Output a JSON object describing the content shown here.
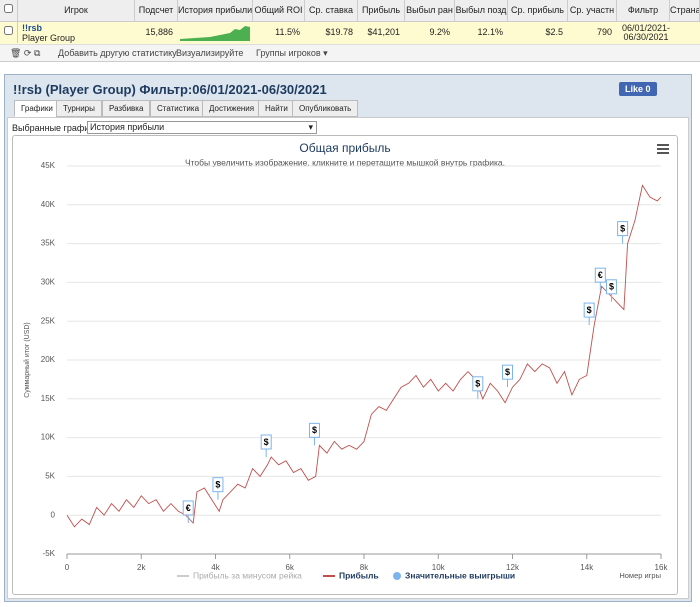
{
  "table": {
    "headers": [
      "Игрок",
      "Подсчет",
      "История прибыли",
      "Общий ROI",
      "Ср. ставка",
      "Прибыль",
      "Выбыл ран",
      "Выбыл позд",
      "Ср. прибыль",
      "Ср. участн",
      "Фильтр",
      "Страна"
    ],
    "row": {
      "player": "!!rsb",
      "group": "Player Group",
      "cells": [
        "15,886",
        "11.5%",
        "$19.78",
        "$41,201",
        "9.2%",
        "12.1%",
        "$2.5",
        "790"
      ],
      "filter": [
        "06/01/2021-",
        "06/30/2021"
      ]
    }
  },
  "toolbar": {
    "add": "Добавить другую статистику",
    "visualize": "Визуализируйте",
    "groups": "Группы игроков ▾"
  },
  "panel": {
    "title": "!!rsb (Player Group) Фильтр:06/01/2021-06/30/2021",
    "like": "Like 0",
    "tabs": [
      "Графики",
      "Турниры",
      "Разбивка",
      "Статистика",
      "Достижения",
      "Найти",
      "Опубликовать"
    ],
    "select_label": "Выбранные графики:",
    "select_value": "История прибыли"
  },
  "chart_data": {
    "type": "line",
    "title": "Общая прибыль",
    "subtitle": "Чтобы увеличить изображение, кликните и перетащите мышкой внутрь графика.",
    "y_label": "Суммарный итог (USD)",
    "x_label": "Номер игры",
    "x": [
      0,
      200,
      400,
      600,
      800,
      1000,
      1200,
      1400,
      1600,
      1800,
      2000,
      2200,
      2400,
      2600,
      2800,
      3000,
      3200,
      3400,
      3500,
      3700,
      3900,
      4100,
      4200,
      4400,
      4600,
      4800,
      5000,
      5200,
      5400,
      5500,
      5700,
      5900,
      6100,
      6300,
      6500,
      6700,
      6800,
      7000,
      7200,
      7400,
      7600,
      7800,
      8000,
      8200,
      8400,
      8600,
      8800,
      9000,
      9200,
      9400,
      9600,
      9800,
      10000,
      10200,
      10400,
      10600,
      10800,
      11000,
      11200,
      11400,
      11600,
      11800,
      12000,
      12200,
      12400,
      12600,
      12800,
      13000,
      13200,
      13400,
      13600,
      13800,
      14000,
      14200,
      14400,
      14600,
      14800,
      15000,
      15100,
      15300,
      15500,
      15700,
      15900,
      16000
    ],
    "series": [
      {
        "name": "Прибыль",
        "color": "#c0504d",
        "values": [
          0,
          -1500,
          -500,
          -1200,
          1000,
          0,
          1500,
          500,
          2000,
          1000,
          2500,
          1500,
          2000,
          500,
          1500,
          500,
          0,
          -1000,
          3000,
          3500,
          2000,
          500,
          2000,
          3000,
          4000,
          3500,
          6000,
          5000,
          6500,
          7500,
          6500,
          7000,
          5500,
          6000,
          4500,
          5000,
          9000,
          8000,
          9500,
          8500,
          9000,
          8500,
          9500,
          13000,
          14000,
          13500,
          15000,
          16500,
          17000,
          18000,
          16500,
          17500,
          16000,
          17000,
          16000,
          17500,
          18500,
          17500,
          15000,
          17000,
          16000,
          14500,
          16500,
          17500,
          19500,
          18500,
          19500,
          19000,
          17000,
          18500,
          15500,
          17500,
          18000,
          24500,
          29500,
          28500,
          27500,
          26500,
          35000,
          38000,
          42500,
          41000,
          40500,
          41000
        ]
      }
    ],
    "legend_extra": [
      {
        "name": "Прибыль за минусом рейка",
        "color": "#cccccc"
      },
      {
        "name": "Значительные выигрыши",
        "color": "#7cb5ec"
      }
    ],
    "flags": [
      {
        "x": 3400,
        "label": "€"
      },
      {
        "x": 4200,
        "label": "$"
      },
      {
        "x": 5500,
        "label": "$"
      },
      {
        "x": 6800,
        "label": "$"
      },
      {
        "x": 11200,
        "label": "$"
      },
      {
        "x": 12000,
        "label": "$"
      },
      {
        "x": 14200,
        "label": "$"
      },
      {
        "x": 14500,
        "label": "€"
      },
      {
        "x": 14800,
        "label": "$"
      },
      {
        "x": 15100,
        "label": "$"
      }
    ],
    "xlim": [
      0,
      16000
    ],
    "ylim": [
      -5000,
      45000
    ],
    "xticks": [
      0,
      {
        "value": 2000,
        "label": "2k"
      },
      {
        "value": 4000,
        "label": "4k"
      },
      {
        "value": 6000,
        "label": "6k"
      },
      {
        "value": 8000,
        "label": "8k"
      },
      {
        "value": 10000,
        "label": "10k"
      },
      {
        "value": 12000,
        "label": "12k"
      },
      {
        "value": 14000,
        "label": "14k"
      },
      {
        "value": 16000,
        "label": "16k"
      }
    ],
    "yticks": [
      {
        "value": -5000,
        "label": "-5K"
      },
      0,
      {
        "value": 5000,
        "label": "5K"
      },
      {
        "value": 10000,
        "label": "10K"
      },
      {
        "value": 15000,
        "label": "15K"
      },
      {
        "value": 20000,
        "label": "20K"
      },
      {
        "value": 25000,
        "label": "25K"
      },
      {
        "value": 30000,
        "label": "30K"
      },
      {
        "value": 35000,
        "label": "35K"
      },
      {
        "value": 40000,
        "label": "40K"
      },
      {
        "value": 45000,
        "label": "45K"
      }
    ],
    "grid": true
  }
}
